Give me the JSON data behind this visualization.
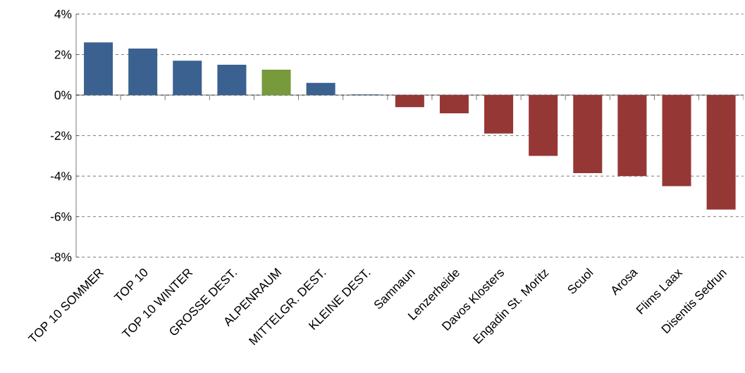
{
  "chart_data": {
    "type": "bar",
    "categories": [
      "TOP 10 SOMMER",
      "TOP 10",
      "TOP 10 WINTER",
      "GROSSE DEST.",
      "ALPENRAUM",
      "MITTELGR. DEST.",
      "KLEINE DEST.",
      "Samnaun",
      "Lenzerheide",
      "Davos Klosters",
      "Engadin St. Moritz",
      "Scuol",
      "Arosa",
      "Flims Laax",
      "Disentis Sedrun"
    ],
    "values": [
      2.6,
      2.3,
      1.7,
      1.5,
      1.25,
      0.6,
      0.03,
      -0.6,
      -0.9,
      -1.9,
      -3.0,
      -3.85,
      -4.0,
      -4.5,
      -5.65
    ],
    "colors": [
      "#3a6190",
      "#3a6190",
      "#3a6190",
      "#3a6190",
      "#779a3b",
      "#3a6190",
      "#3a6190",
      "#953735",
      "#953735",
      "#953735",
      "#953735",
      "#953735",
      "#953735",
      "#953735",
      "#953735"
    ],
    "ylim": [
      -8,
      4
    ],
    "yticks": [
      {
        "value": -8,
        "label": "-8%"
      },
      {
        "value": -6,
        "label": "-6%"
      },
      {
        "value": -4,
        "label": "-4%"
      },
      {
        "value": -2,
        "label": "-2%"
      },
      {
        "value": 0,
        "label": "0%"
      },
      {
        "value": 2,
        "label": "2%"
      },
      {
        "value": 4,
        "label": "4%"
      }
    ],
    "grid": "y"
  }
}
